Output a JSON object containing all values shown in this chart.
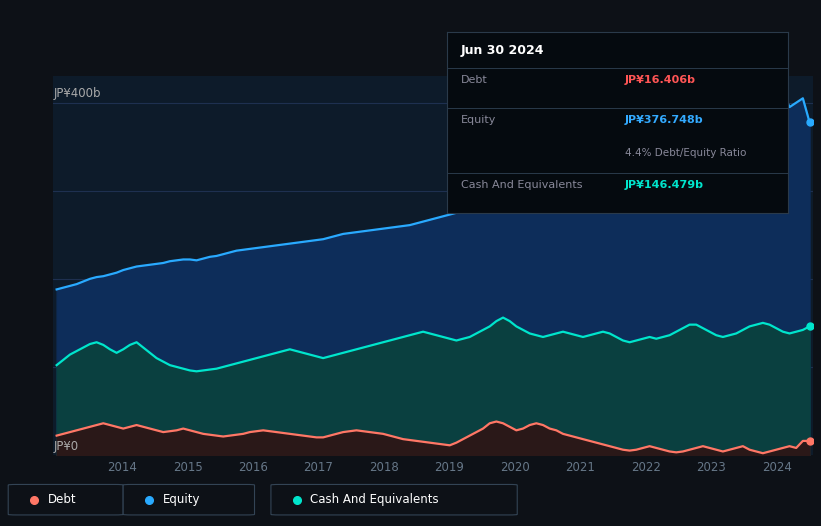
{
  "bg_color": "#0d1117",
  "plot_bg_color": "#0d1b2a",
  "title_box": {
    "date": "Jun 30 2024",
    "debt_label": "Debt",
    "debt_value": "JP¥16.406b",
    "equity_label": "Equity",
    "equity_value": "JP¥376.748b",
    "ratio": "4.4% Debt/Equity Ratio",
    "cash_label": "Cash And Equivalents",
    "cash_value": "JP¥146.479b",
    "debt_color": "#ff5555",
    "equity_color": "#33aaff",
    "cash_color": "#00e5cc",
    "label_color": "#888899"
  },
  "ylabel_400": "JP¥400b",
  "ylabel_0": "JP¥0",
  "line_colors": {
    "equity": "#29aaff",
    "cash": "#00e5cc",
    "debt": "#ff7766"
  },
  "fill_colors": {
    "equity": "#0d2d5a",
    "cash": "#0a4040",
    "debt": "#2a1818"
  },
  "equity": [
    188,
    190,
    192,
    194,
    197,
    200,
    202,
    203,
    205,
    207,
    210,
    212,
    214,
    215,
    216,
    217,
    218,
    220,
    221,
    222,
    222,
    221,
    223,
    225,
    226,
    228,
    230,
    232,
    233,
    234,
    235,
    236,
    237,
    238,
    239,
    240,
    241,
    242,
    243,
    244,
    245,
    247,
    249,
    251,
    252,
    253,
    254,
    255,
    256,
    257,
    258,
    259,
    260,
    261,
    263,
    265,
    267,
    269,
    271,
    273,
    275,
    278,
    281,
    284,
    287,
    290,
    294,
    298,
    302,
    306,
    312,
    318,
    322,
    326,
    330,
    334,
    338,
    342,
    345,
    348,
    350,
    352,
    354,
    356,
    357,
    358,
    358,
    359,
    360,
    362,
    364,
    366,
    368,
    370,
    373,
    377,
    381,
    385,
    389,
    393,
    397,
    400,
    402,
    404,
    405,
    406,
    407,
    408,
    410,
    412,
    395,
    400,
    405,
    378
  ],
  "cash": [
    102,
    108,
    114,
    118,
    122,
    126,
    128,
    125,
    120,
    116,
    120,
    125,
    128,
    122,
    116,
    110,
    106,
    102,
    100,
    98,
    96,
    95,
    96,
    97,
    98,
    100,
    102,
    104,
    106,
    108,
    110,
    112,
    114,
    116,
    118,
    120,
    118,
    116,
    114,
    112,
    110,
    112,
    114,
    116,
    118,
    120,
    122,
    124,
    126,
    128,
    130,
    132,
    134,
    136,
    138,
    140,
    138,
    136,
    134,
    132,
    130,
    132,
    134,
    138,
    142,
    146,
    152,
    156,
    152,
    146,
    142,
    138,
    136,
    134,
    136,
    138,
    140,
    138,
    136,
    134,
    136,
    138,
    140,
    138,
    134,
    130,
    128,
    130,
    132,
    134,
    132,
    134,
    136,
    140,
    144,
    148,
    148,
    144,
    140,
    136,
    134,
    136,
    138,
    142,
    146,
    148,
    150,
    148,
    144,
    140,
    138,
    140,
    142,
    146
  ],
  "debt": [
    22,
    24,
    26,
    28,
    30,
    32,
    34,
    36,
    34,
    32,
    30,
    32,
    34,
    32,
    30,
    28,
    26,
    27,
    28,
    30,
    28,
    26,
    24,
    23,
    22,
    21,
    22,
    23,
    24,
    26,
    27,
    28,
    27,
    26,
    25,
    24,
    23,
    22,
    21,
    20,
    20,
    22,
    24,
    26,
    27,
    28,
    27,
    26,
    25,
    24,
    22,
    20,
    18,
    17,
    16,
    15,
    14,
    13,
    12,
    11,
    14,
    18,
    22,
    26,
    30,
    36,
    38,
    36,
    32,
    28,
    30,
    34,
    36,
    34,
    30,
    28,
    24,
    22,
    20,
    18,
    16,
    14,
    12,
    10,
    8,
    6,
    5,
    6,
    8,
    10,
    8,
    6,
    4,
    3,
    4,
    6,
    8,
    10,
    8,
    6,
    4,
    6,
    8,
    10,
    6,
    4,
    2,
    4,
    6,
    8,
    10,
    8,
    16,
    16
  ],
  "x_start_year": 2013,
  "x_end_year": 2024,
  "x_tick_years": [
    2014,
    2015,
    2016,
    2017,
    2018,
    2019,
    2020,
    2021,
    2022,
    2023,
    2024
  ],
  "ylim_max": 430,
  "grid_lines": [
    100,
    200,
    300,
    400
  ],
  "legend": [
    {
      "label": "Debt",
      "color": "#ff7766"
    },
    {
      "label": "Equity",
      "color": "#29aaff"
    },
    {
      "label": "Cash And Equivalents",
      "color": "#00e5cc"
    }
  ]
}
